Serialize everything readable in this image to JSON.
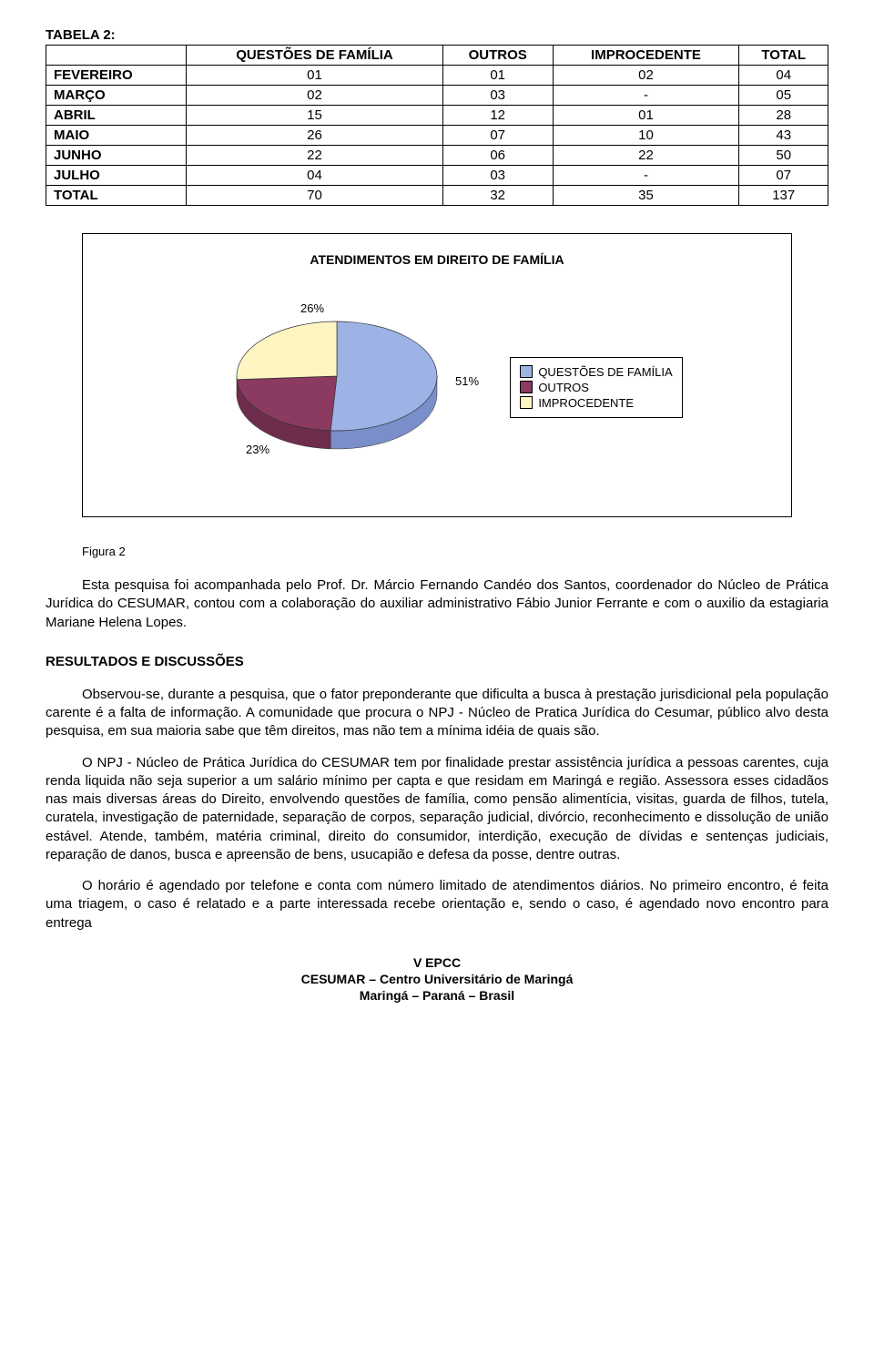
{
  "table": {
    "title": "TABELA 2:",
    "headers": [
      "",
      "QUESTÕES DE FAMÍLIA",
      "OUTROS",
      "IMPROCEDENTE",
      "TOTAL"
    ],
    "rows": [
      [
        "FEVEREIRO",
        "01",
        "01",
        "02",
        "04"
      ],
      [
        "MARÇO",
        "02",
        "03",
        "-",
        "05"
      ],
      [
        "ABRIL",
        "15",
        "12",
        "01",
        "28"
      ],
      [
        "MAIO",
        "26",
        "07",
        "10",
        "43"
      ],
      [
        "JUNHO",
        "22",
        "06",
        "22",
        "50"
      ],
      [
        "JULHO",
        "04",
        "03",
        "-",
        "07"
      ],
      [
        "TOTAL",
        "70",
        "32",
        "35",
        "137"
      ]
    ]
  },
  "chart": {
    "title": "ATENDIMENTOS EM DIREITO DE FAMÍLIA",
    "type": "pie",
    "slices": [
      {
        "label": "QUESTÕES DE FAMÍLIA",
        "pct": 51,
        "color": "#9db3e6",
        "side_color": "#7a8fc9"
      },
      {
        "label": "OUTROS",
        "pct": 23,
        "color": "#8b3a62",
        "side_color": "#6e2d4d"
      },
      {
        "label": "IMPROCEDENTE",
        "pct": 26,
        "color": "#fdf6c2",
        "side_color": "#d9d18f"
      }
    ],
    "label_fontsize": 13,
    "pct_labels": [
      "51%",
      "23%",
      "26%"
    ],
    "background_color": "#ffffff",
    "border_color": "#000000"
  },
  "fig_caption": "Figura 2",
  "para1": "Esta pesquisa foi acompanhada pelo Prof. Dr. Márcio Fernando Candéo dos Santos, coordenador do Núcleo de Prática Jurídica do CESUMAR, contou com a colaboração do auxiliar administrativo Fábio Junior Ferrante e com o auxilio da estagiaria Mariane Helena Lopes.",
  "section_heading": "RESULTADOS E DISCUSSÕES",
  "para2": "Observou-se, durante a pesquisa, que o fator preponderante que dificulta a busca à prestação jurisdicional pela população carente é a falta de informação. A comunidade que procura o NPJ - Núcleo de Pratica Jurídica do Cesumar, público alvo desta pesquisa, em sua maioria sabe que têm direitos, mas não tem a mínima idéia de quais são.",
  "para3": "O NPJ - Núcleo de Prática Jurídica do CESUMAR tem por finalidade prestar assistência jurídica a pessoas carentes, cuja renda liquida não seja superior a um salário mínimo per capta e que residam em Maringá e região. Assessora esses cidadãos nas mais diversas áreas do Direito, envolvendo questões de família, como pensão alimentícia, visitas, guarda de filhos, tutela, curatela, investigação de paternidade, separação de corpos, separação judicial, divórcio, reconhecimento e dissolução de união estável. Atende, também, matéria criminal, direito do consumidor, interdição, execução de dívidas e sentenças judiciais, reparação de danos, busca e apreensão de bens, usucapião e defesa da posse, dentre outras.",
  "para4": "O horário é agendado por telefone e conta com número limitado de atendimentos diários. No primeiro encontro, é feita uma triagem, o caso é relatado e a parte interessada recebe orientação e, sendo o caso, é agendado novo encontro para entrega",
  "footer": {
    "line1": "V EPCC",
    "line2": "CESUMAR – Centro Universitário de Maringá",
    "line3": "Maringá – Paraná – Brasil"
  }
}
